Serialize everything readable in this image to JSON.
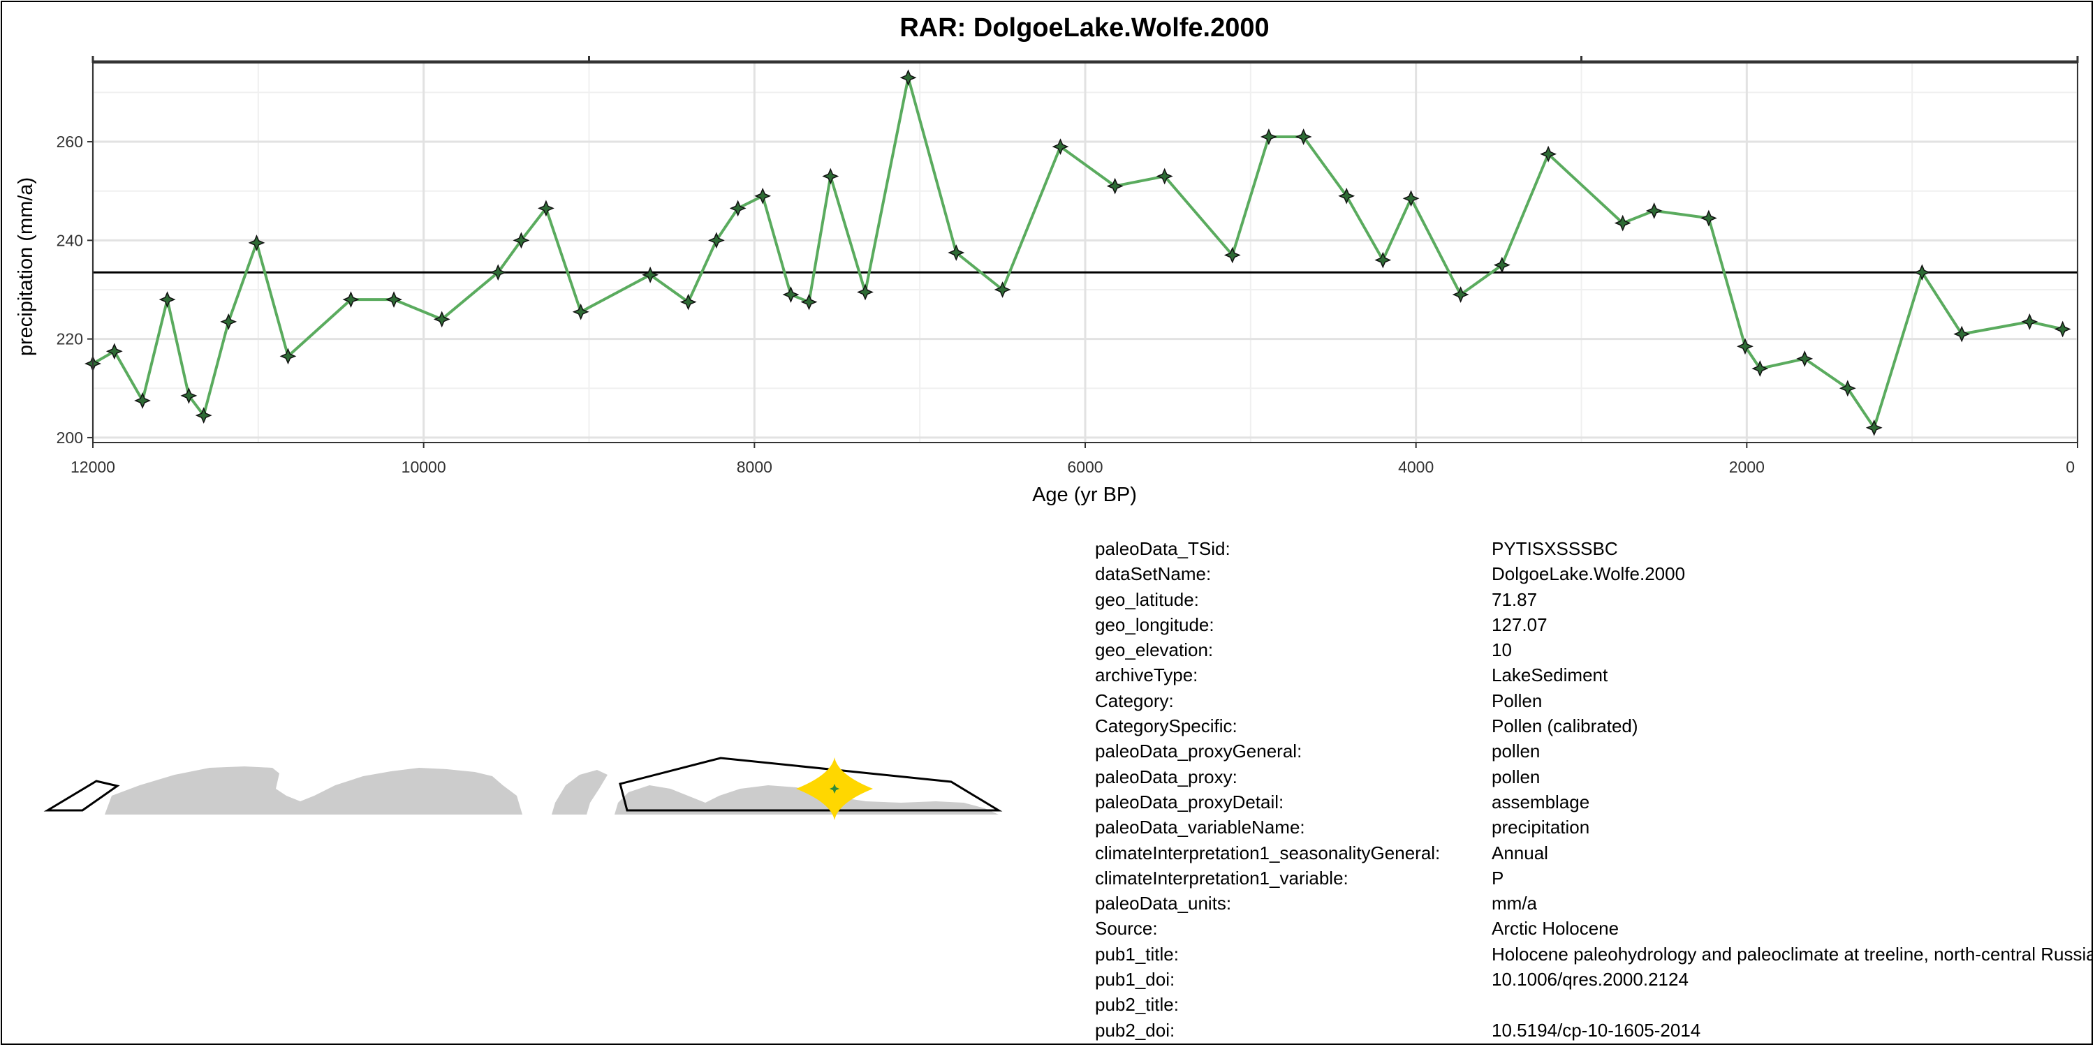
{
  "chart_data": {
    "type": "line",
    "title": "RAR: DolgoeLake.Wolfe.2000",
    "xlabel": "Age (yr BP)",
    "ylabel": "precipitation (mm/a)",
    "x_reversed": true,
    "xlim": [
      12000,
      0
    ],
    "ylim": [
      199,
      276
    ],
    "xticks": [
      12000,
      10000,
      8000,
      6000,
      4000,
      2000,
      0
    ],
    "yticks": [
      200,
      220,
      240,
      260
    ],
    "grid": true,
    "reference_line": 233.5,
    "line_color": "#5aab5e",
    "marker_color": "#2e6b35",
    "series": [
      {
        "x": [
          12000,
          11870,
          11700,
          11550,
          11420,
          11330,
          11180,
          11010,
          10820,
          10440,
          10180,
          9890,
          9550,
          9410,
          9260,
          9050,
          8630,
          8400,
          8230,
          8100,
          7950,
          7780,
          7670,
          7540,
          7330,
          7070,
          6780,
          6500,
          6150,
          5820,
          5520,
          5110,
          4890,
          4680,
          4420,
          4200,
          4030,
          3730,
          3480,
          3200,
          2750,
          2560,
          2230,
          2010,
          1920,
          1650,
          1390,
          1230,
          940,
          700,
          290,
          90
        ],
        "y": [
          215,
          217.5,
          207.5,
          228,
          208.5,
          204.5,
          223.5,
          239.5,
          216.5,
          228,
          228,
          224,
          233.5,
          240,
          246.5,
          225.5,
          233,
          227.5,
          240,
          246.5,
          249,
          229,
          227.5,
          253,
          229.5,
          273,
          237.5,
          230,
          259,
          251,
          253,
          237,
          261,
          261,
          249,
          236,
          248.5,
          229,
          235,
          257.5,
          243.5,
          246,
          244.5,
          218.5,
          214,
          216,
          210,
          202,
          233.5,
          221,
          223.5,
          222
        ]
      }
    ]
  },
  "metadata": [
    {
      "key": "paleoData_TSid:",
      "value": "PYTISXSSSBC"
    },
    {
      "key": "dataSetName:",
      "value": "DolgoeLake.Wolfe.2000"
    },
    {
      "key": "geo_latitude:",
      "value": "71.87"
    },
    {
      "key": "geo_longitude:",
      "value": "127.07"
    },
    {
      "key": "geo_elevation:",
      "value": "10"
    },
    {
      "key": "archiveType:",
      "value": "LakeSediment"
    },
    {
      "key": "Category:",
      "value": "Pollen"
    },
    {
      "key": "CategorySpecific:",
      "value": "Pollen (calibrated)"
    },
    {
      "key": "paleoData_proxyGeneral:",
      "value": "pollen"
    },
    {
      "key": "paleoData_proxy:",
      "value": "pollen"
    },
    {
      "key": "paleoData_proxyDetail:",
      "value": "assemblage"
    },
    {
      "key": "paleoData_variableName:",
      "value": "precipitation"
    },
    {
      "key": "climateInterpretation1_seasonalityGeneral:",
      "value": "Annual"
    },
    {
      "key": "climateInterpretation1_variable:",
      "value": "P"
    },
    {
      "key": "paleoData_units:",
      "value": "mm/a"
    },
    {
      "key": "Source:",
      "value": "Arctic Holocene"
    },
    {
      "key": "pub1_title:",
      "value": "Holocene paleohydrology and paleoclimate at treeline, north-central Russia, inferred from oxygen isotope records in lake sediment cellulose"
    },
    {
      "key": "pub1_doi:",
      "value": "10.1006/qres.2000.2124"
    },
    {
      "key": "pub2_title:",
      "value": ""
    },
    {
      "key": "pub2_doi:",
      "value": "10.5194/cp-10-1605-2014"
    }
  ],
  "map": {
    "land_color": "#cccccc",
    "site_marker_color": "#ffd700",
    "site_point_color": "#2e8b3a"
  }
}
